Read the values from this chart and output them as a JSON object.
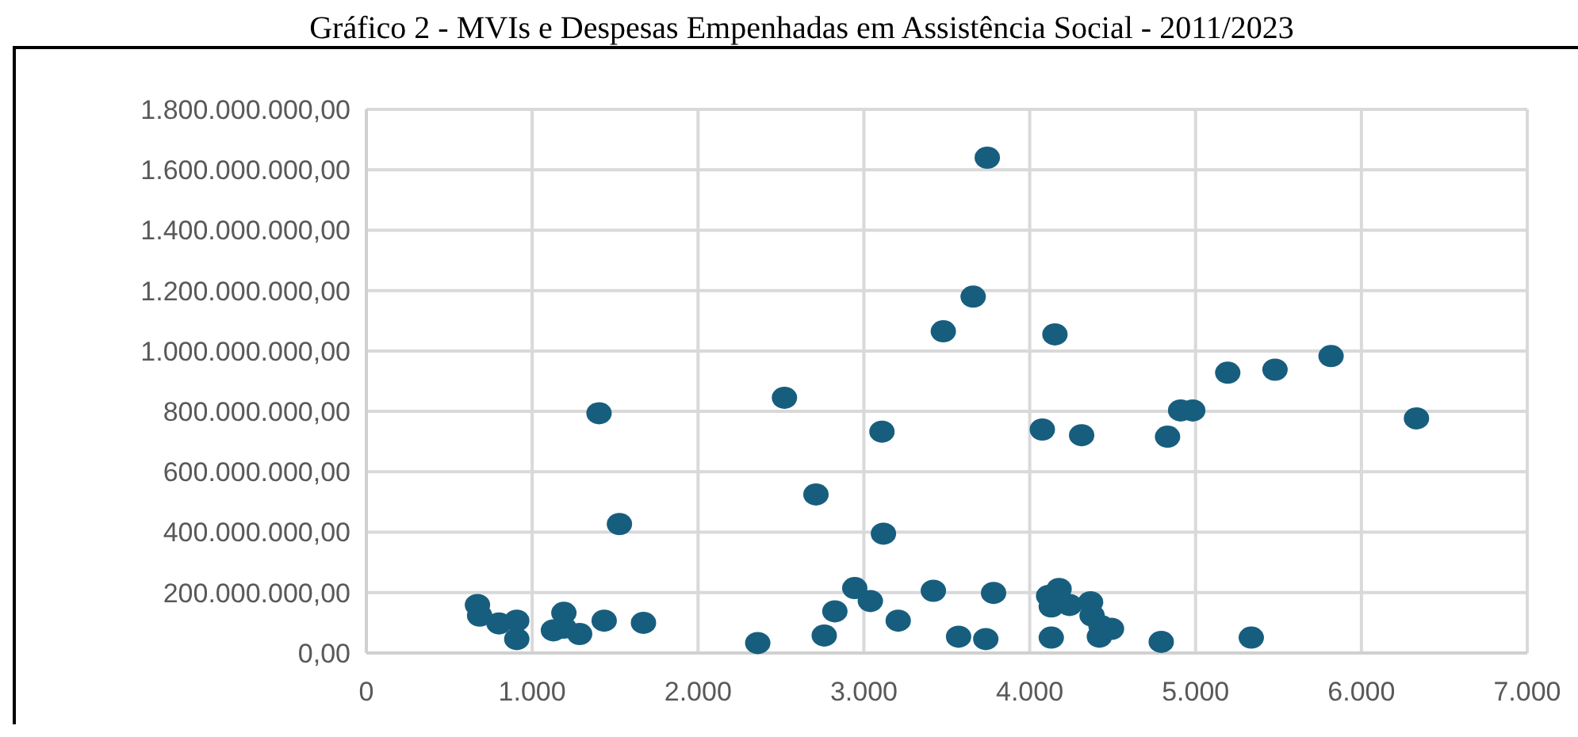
{
  "chart_data": {
    "type": "scatter",
    "title": "Gráfico 2 - MVIs e Despesas Empenhadas em Assistência Social - 2011/2023",
    "x": [
      3744,
      3659,
      3479,
      4152,
      2521,
      1403,
      3109,
      4076,
      2711,
      1526,
      3118,
      4313,
      4831,
      4910,
      4983,
      5194,
      5479,
      5817,
      6332,
      3782,
      3571,
      3735,
      4130,
      4177,
      4114,
      4130,
      4240,
      4367,
      4376,
      4420,
      4493,
      4430,
      4793,
      5336,
      2945,
      3039,
      2825,
      3207,
      3419,
      2761,
      2360,
      1434,
      1671,
      670,
      683,
      800,
      907,
      907,
      1191,
      1286,
      1191,
      1128
    ],
    "values": [
      1640000000,
      1180000000,
      1065000000,
      1055000000,
      845000000,
      794000000,
      733000000,
      740000000,
      525000000,
      427000000,
      395000000,
      721000000,
      716000000,
      803000000,
      803000000,
      928000000,
      938000000,
      983000000,
      777000000,
      199000000,
      54000000,
      46000000,
      51000000,
      212000000,
      189000000,
      154000000,
      159000000,
      168000000,
      124000000,
      54000000,
      80000000,
      89000000,
      37000000,
      51000000,
      215000000,
      172000000,
      138000000,
      107000000,
      206000000,
      58000000,
      33000000,
      107000000,
      100000000,
      159000000,
      124000000,
      98000000,
      46000000,
      107000000,
      133000000,
      63000000,
      84000000,
      75000000
    ],
    "color": "#175e7e",
    "marker": "circle",
    "grid": true,
    "xlim": [
      0,
      7000
    ],
    "xticks": [
      0,
      {
        "value": 1000,
        "label": "1.000"
      },
      {
        "value": 2000,
        "label": "2.000"
      },
      {
        "value": 3000,
        "label": "3.000"
      },
      {
        "value": 4000,
        "label": "4.000"
      },
      {
        "value": 5000,
        "label": "5.000"
      },
      {
        "value": 6000,
        "label": "6.000"
      },
      {
        "value": 7000,
        "label": "7.000"
      }
    ],
    "ylim": [
      0,
      1800000000
    ],
    "yticks": [
      {
        "value": 0,
        "label": "0,00"
      },
      {
        "value": 200000000,
        "label": "200.000.000,00"
      },
      {
        "value": 400000000,
        "label": "400.000.000,00"
      },
      {
        "value": 600000000,
        "label": "600.000.000,00"
      },
      {
        "value": 800000000,
        "label": "800.000.000,00"
      },
      {
        "value": 1000000000,
        "label": "1.000.000.000,00"
      },
      {
        "value": 1200000000,
        "label": "1.200.000.000,00"
      },
      {
        "value": 1400000000,
        "label": "1.400.000.000,00"
      },
      {
        "value": 1600000000,
        "label": "1.600.000.000,00"
      },
      {
        "value": 1800000000,
        "label": "1.800.000.000,00"
      }
    ]
  }
}
